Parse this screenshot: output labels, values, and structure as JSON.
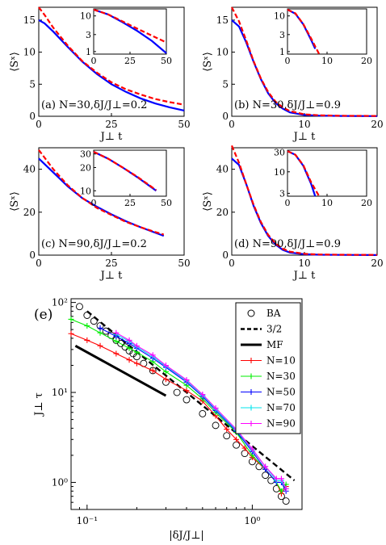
{
  "figure": {
    "panels": [
      {
        "id": "a",
        "label": "(a) N=30,δJ/J⊥=0.2",
        "ylabel": "⟨Sˣ⟩",
        "xlabel": "J⊥ t",
        "xlim": [
          0,
          50
        ],
        "ylim": [
          0,
          17
        ],
        "xticks": [
          0,
          25,
          50
        ],
        "yticks": [
          0,
          5,
          10,
          15
        ]
      },
      {
        "id": "b",
        "label": "(b) N=30,δJ/J⊥=0.9",
        "ylabel": "⟨Sˣ⟩",
        "xlabel": "J⊥ t",
        "xlim": [
          0,
          20
        ],
        "ylim": [
          0,
          17
        ],
        "xticks": [
          0,
          10,
          20
        ],
        "yticks": [
          0,
          5,
          10,
          15
        ]
      },
      {
        "id": "c",
        "label": "(c) N=90,δJ/J⊥=0.2",
        "ylabel": "⟨Sˣ⟩",
        "xlabel": "J⊥ t",
        "xlim": [
          0,
          50
        ],
        "ylim": [
          0,
          50
        ],
        "xticks": [
          0,
          25,
          50
        ],
        "yticks": [
          0,
          20,
          40
        ]
      },
      {
        "id": "d",
        "label": "(d) N=90,δJ/J⊥=0.9",
        "ylabel": "⟨Sˣ⟩",
        "xlabel": "J⊥ t",
        "xlim": [
          0,
          20
        ],
        "ylim": [
          0,
          50
        ],
        "xticks": [
          0,
          10,
          20
        ],
        "yticks": [
          0,
          20,
          40
        ]
      }
    ],
    "panel_e": {
      "label": "(e)",
      "ylabel": "J⊥ τ",
      "xlabel": "|δJ/J⊥|",
      "xtick_labels": [
        "10⁻¹",
        "10⁰"
      ],
      "ytick_labels": [
        "10⁰",
        "10¹",
        "10²"
      ],
      "legend": [
        "BA",
        "3/2",
        "MF",
        "N=10",
        "N=30",
        "N=50",
        "N=70",
        "N=90"
      ]
    }
  },
  "chart_data": [
    {
      "type": "line",
      "panel": "a",
      "xlim": [
        0,
        50
      ],
      "ylim": [
        0,
        17
      ],
      "series": [
        {
          "style": "solid-blue",
          "x": [
            0,
            2,
            5,
            10,
            15,
            20,
            25,
            30,
            35,
            40,
            45,
            50
          ],
          "y": [
            15.0,
            14.5,
            13.2,
            10.8,
            8.5,
            6.6,
            5.0,
            3.8,
            2.8,
            2.0,
            1.4,
            0.9
          ]
        },
        {
          "style": "dashed-red",
          "x": [
            0,
            2,
            5,
            10,
            15,
            20,
            25,
            30,
            35,
            40,
            45,
            50
          ],
          "y": [
            17.0,
            15.8,
            13.8,
            11.0,
            8.6,
            6.8,
            5.3,
            4.2,
            3.4,
            2.7,
            2.2,
            1.8
          ]
        }
      ],
      "inset": {
        "xlim": [
          0,
          50
        ],
        "yticks": [
          1,
          3,
          10
        ],
        "xticks": [
          0,
          25,
          50
        ],
        "log_y": true,
        "series": [
          {
            "style": "solid-blue",
            "x": [
              0,
              10,
              20,
              30,
              40,
              50
            ],
            "y": [
              15,
              11,
              6.6,
              3.8,
              2.0,
              0.9
            ]
          },
          {
            "style": "dashed-red",
            "x": [
              0,
              10,
              20,
              30,
              40,
              50
            ],
            "y": [
              15,
              11,
              7.0,
              4.4,
              2.8,
              1.8
            ]
          }
        ]
      }
    },
    {
      "type": "line",
      "panel": "b",
      "xlim": [
        0,
        20
      ],
      "ylim": [
        0,
        17
      ],
      "series": [
        {
          "style": "solid-blue",
          "x": [
            0,
            1,
            2,
            3,
            4,
            5,
            6,
            7,
            8,
            10,
            12,
            15,
            20
          ],
          "y": [
            15.0,
            14.0,
            11.5,
            8.5,
            5.8,
            3.6,
            2.1,
            1.2,
            0.6,
            0.2,
            0.1,
            0.05,
            0.02
          ]
        },
        {
          "style": "dashed-red",
          "x": [
            0,
            1,
            2,
            3,
            4,
            5,
            6,
            7,
            8,
            10,
            12,
            15,
            20
          ],
          "y": [
            17.0,
            14.8,
            11.8,
            8.6,
            5.9,
            3.8,
            2.3,
            1.4,
            0.8,
            0.3,
            0.15,
            0.08,
            0.05
          ]
        }
      ],
      "inset": {
        "xlim": [
          0,
          20
        ],
        "yticks": [
          1,
          3,
          10
        ],
        "xticks": [
          0,
          10,
          20
        ],
        "log_y": true,
        "series": [
          {
            "style": "solid-blue",
            "x": [
              0,
              2,
              4,
              6,
              7
            ],
            "y": [
              15,
              11.5,
              5.8,
              2.1,
              1.2
            ]
          },
          {
            "style": "dashed-red",
            "x": [
              0,
              2,
              4,
              6,
              8
            ],
            "y": [
              15,
              11.8,
              5.9,
              2.3,
              0.8
            ]
          }
        ]
      }
    },
    {
      "type": "line",
      "panel": "c",
      "xlim": [
        0,
        50
      ],
      "ylim": [
        0,
        50
      ],
      "series": [
        {
          "style": "solid-blue",
          "x": [
            0,
            5,
            10,
            15,
            20,
            25,
            30,
            35,
            40,
            43
          ],
          "y": [
            45,
            38.5,
            32.0,
            26.5,
            22.5,
            19.0,
            15.8,
            13.0,
            10.5,
            9.0
          ]
        },
        {
          "style": "dashed-red",
          "x": [
            0,
            5,
            10,
            15,
            20,
            25,
            30,
            35,
            40,
            43
          ],
          "y": [
            49,
            40.0,
            32.5,
            26.6,
            22.0,
            18.7,
            15.5,
            13.0,
            10.8,
            9.6
          ]
        }
      ],
      "inset": {
        "xlim": [
          0,
          50
        ],
        "yticks": [
          10,
          20,
          30
        ],
        "xticks": [
          0,
          25,
          50
        ],
        "log_y": true,
        "series": [
          {
            "style": "solid-blue",
            "x": [
              0,
              10,
              20,
              30,
              40,
              43
            ],
            "y": [
              32,
              26,
              20,
              15,
              11,
              10
            ]
          },
          {
            "style": "dashed-red",
            "x": [
              0,
              10,
              20,
              30,
              40,
              43
            ],
            "y": [
              32,
              26,
              20,
              15.2,
              11.2,
              10.2
            ]
          }
        ]
      }
    },
    {
      "type": "line",
      "panel": "d",
      "xlim": [
        0,
        20
      ],
      "ylim": [
        0,
        50
      ],
      "series": [
        {
          "style": "solid-blue",
          "x": [
            0,
            1,
            2,
            3,
            4,
            5,
            6,
            7,
            8,
            10,
            12,
            15,
            20
          ],
          "y": [
            45,
            42,
            33,
            23,
            15,
            9,
            5,
            2.5,
            1.2,
            0.4,
            0.2,
            0.1,
            0.05
          ]
        },
        {
          "style": "dashed-red",
          "x": [
            0,
            1,
            2,
            3,
            4,
            5,
            6,
            7,
            8,
            10,
            12,
            15,
            20
          ],
          "y": [
            51,
            43,
            33,
            23.5,
            15.5,
            9.5,
            5.5,
            3.0,
            1.6,
            0.6,
            0.3,
            0.2,
            0.1
          ]
        }
      ],
      "inset": {
        "xlim": [
          0,
          20
        ],
        "yticks": [
          3,
          10,
          30
        ],
        "xticks": [
          0,
          10,
          20
        ],
        "log_y": true,
        "series": [
          {
            "style": "solid-blue",
            "x": [
              0,
              2,
              4,
              6,
              7
            ],
            "y": [
              32,
              26,
              14,
              5,
              2.5
            ]
          },
          {
            "style": "dashed-red",
            "x": [
              0,
              2,
              4,
              6,
              8
            ],
            "y": [
              32,
              26,
              14.5,
              5.5,
              2.4
            ]
          }
        ]
      }
    },
    {
      "type": "scatter",
      "panel": "e",
      "log_x": true,
      "log_y": true,
      "xlim": [
        0.08,
        2.0
      ],
      "ylim": [
        0.5,
        110
      ],
      "series": [
        {
          "name": "BA",
          "marker": "circle",
          "color": "#000000",
          "x": [
            0.09,
            0.1,
            0.11,
            0.12,
            0.13,
            0.14,
            0.15,
            0.16,
            0.17,
            0.18,
            0.19,
            0.2,
            0.22,
            0.25,
            0.3,
            0.35,
            0.4,
            0.5,
            0.6,
            0.7,
            0.8,
            0.9,
            1.0,
            1.1,
            1.2,
            1.3,
            1.4,
            1.5,
            1.6
          ],
          "y": [
            90,
            72,
            62,
            55,
            48,
            43,
            38,
            35,
            32,
            29,
            27,
            25,
            21,
            17.5,
            13,
            10,
            8.3,
            5.8,
            4.3,
            3.3,
            2.6,
            2.1,
            1.7,
            1.5,
            1.2,
            1.05,
            0.85,
            0.7,
            0.62
          ]
        },
        {
          "name": "3/2",
          "style": "dashed",
          "color": "#000000",
          "x": [
            0.1,
            1.8
          ],
          "y": [
            80,
            1.05
          ]
        },
        {
          "name": "MF",
          "style": "solid-thick",
          "color": "#000000",
          "x": [
            0.085,
            0.3
          ],
          "y": [
            33,
            9.2
          ]
        },
        {
          "name": "N=10",
          "marker": "plus",
          "color": "#ff0000",
          "x": [
            0.08,
            0.1,
            0.12,
            0.15,
            0.18,
            0.2,
            0.25,
            0.3,
            0.4,
            0.5,
            0.6,
            0.7,
            0.8,
            0.9,
            1.0,
            1.2,
            1.4,
            1.5,
            1.6
          ],
          "y": [
            45,
            38,
            33,
            27,
            23,
            21,
            17.5,
            14,
            10.5,
            8.0,
            5.5,
            3.9,
            3.0,
            2.4,
            1.9,
            1.4,
            1.0,
            0.75,
            0.9
          ]
        },
        {
          "name": "N=30",
          "marker": "plus",
          "color": "#00ee00",
          "x": [
            0.08,
            0.1,
            0.12,
            0.15,
            0.18,
            0.2,
            0.25,
            0.3,
            0.4,
            0.5,
            0.6,
            0.8,
            1.0,
            1.2,
            1.4,
            1.5,
            1.6
          ],
          "y": [
            65,
            55,
            46,
            37,
            31,
            28,
            22,
            17,
            12,
            8.5,
            6.0,
            3.6,
            2.0,
            1.4,
            1.0,
            0.8,
            0.95
          ]
        },
        {
          "name": "N=50",
          "marker": "plus",
          "color": "#0000ff",
          "x": [
            0.12,
            0.15,
            0.18,
            0.2,
            0.25,
            0.3,
            0.4,
            0.5,
            0.6,
            0.8,
            1.0,
            1.2,
            1.4,
            1.5,
            1.6
          ],
          "y": [
            52,
            42,
            35,
            31,
            24,
            19,
            13,
            9.0,
            6.3,
            3.7,
            2.2,
            1.4,
            1.0,
            1.0,
            0.8
          ]
        },
        {
          "name": "N=70",
          "marker": "plus",
          "color": "#00e5ee",
          "x": [
            0.15,
            0.18,
            0.2,
            0.25,
            0.3,
            0.4,
            0.5,
            0.6,
            0.8,
            1.0,
            1.2,
            1.4,
            1.5,
            1.6
          ],
          "y": [
            44,
            37,
            32,
            25,
            19.5,
            13.5,
            9.3,
            6.5,
            3.8,
            2.3,
            1.5,
            1.05,
            1.05,
            0.85
          ]
        },
        {
          "name": "N=90",
          "marker": "plus",
          "color": "#ff00ff",
          "x": [
            0.15,
            0.18,
            0.2,
            0.25,
            0.3,
            0.4,
            0.5,
            0.6,
            0.8,
            1.0,
            1.2,
            1.4,
            1.5,
            1.6
          ],
          "y": [
            46,
            38,
            33,
            26,
            20,
            13.8,
            9.5,
            6.7,
            3.9,
            2.35,
            1.5,
            1.1,
            1.1,
            0.85
          ]
        }
      ]
    }
  ]
}
